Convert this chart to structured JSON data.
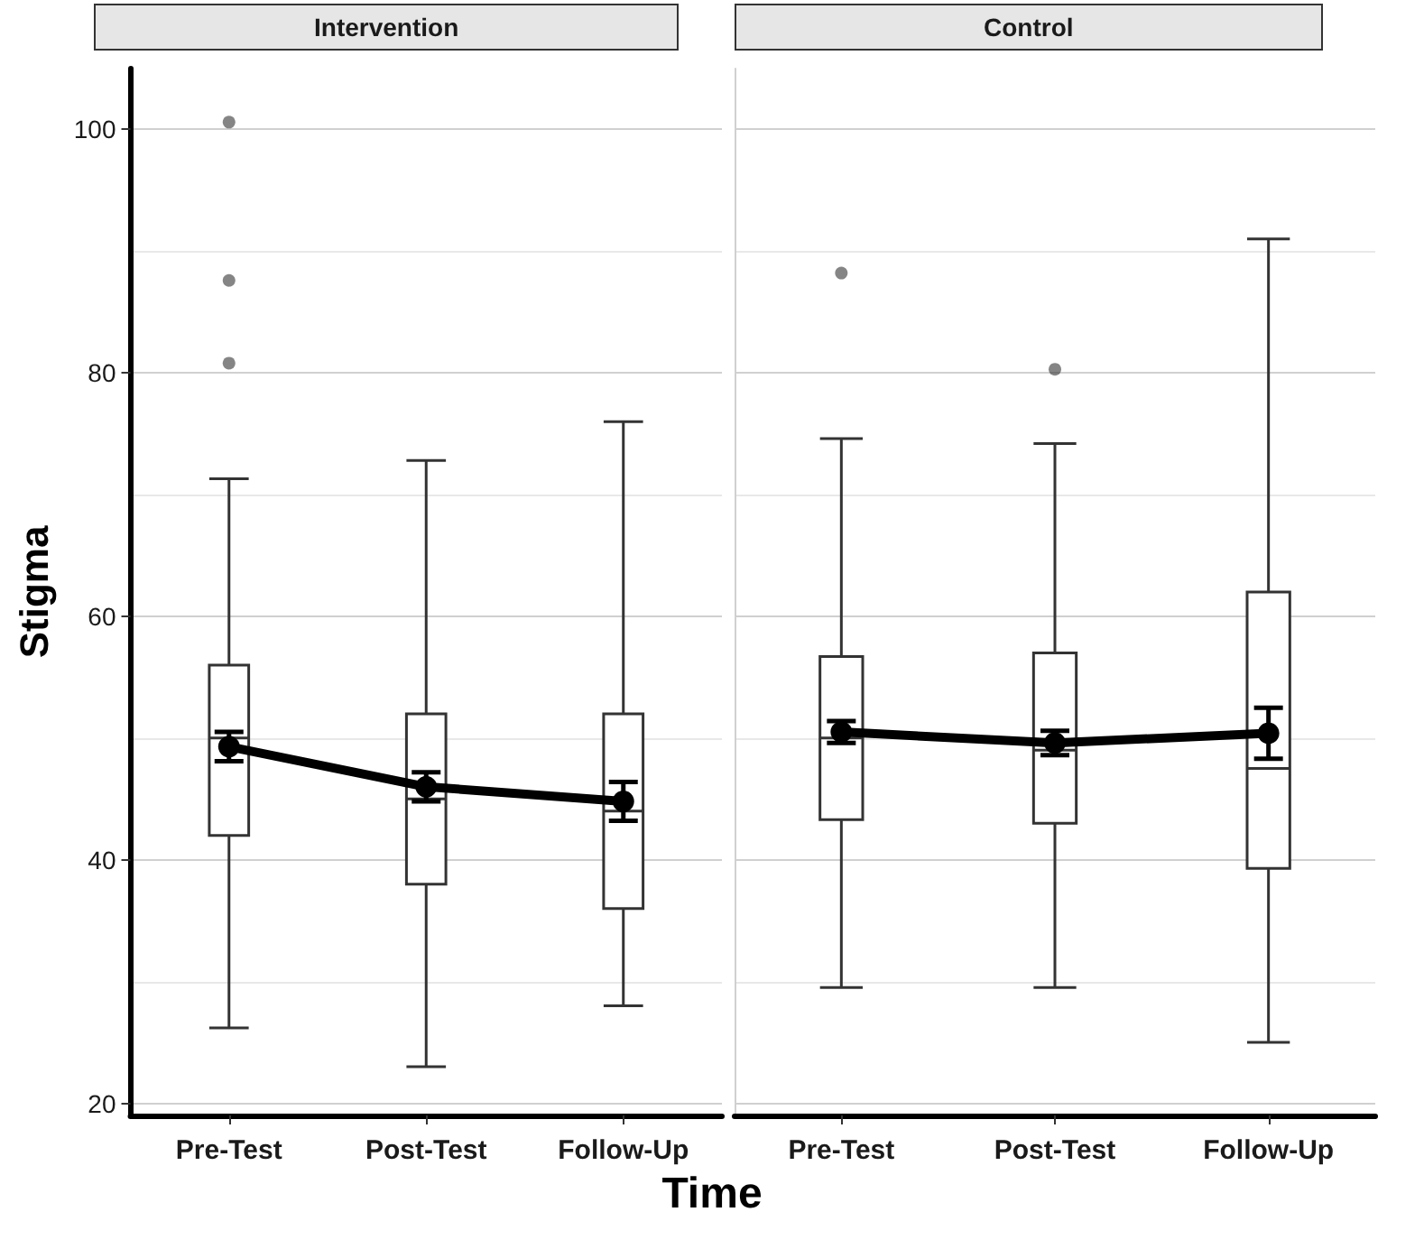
{
  "chart_data": [
    {
      "type": "box",
      "title": "Intervention",
      "ylabel": "Stigma",
      "xlabel": "Time",
      "categories": [
        "Pre-Test",
        "Post-Test",
        "Follow-Up"
      ],
      "ylim": [
        19,
        105
      ],
      "yticks": [
        20,
        40,
        60,
        80,
        100
      ],
      "grid": "y",
      "series": [
        {
          "color": "#333333",
          "boxes": [
            {
              "low": 26.2,
              "q1": 42,
              "median": 50,
              "q3": 56,
              "high": 71.3,
              "outliers": [
                80.8,
                87.6,
                100.6
              ]
            },
            {
              "low": 23,
              "q1": 38,
              "median": 45,
              "q3": 52,
              "high": 72.8
            },
            {
              "low": 28,
              "q1": 36,
              "median": 44,
              "q3": 52,
              "high": 76
            }
          ]
        },
        {
          "type": "line",
          "color": "#000000",
          "marker": "circle",
          "values": [
            49.3,
            46,
            44.8
          ],
          "errors": [
            1.2,
            1.2,
            1.6
          ]
        }
      ]
    },
    {
      "type": "box",
      "title": "Control",
      "categories": [
        "Pre-Test",
        "Post-Test",
        "Follow-Up"
      ],
      "ylim": [
        19,
        105
      ],
      "yticks": [
        20,
        40,
        60,
        80,
        100
      ],
      "grid": "y",
      "tick_labels": "x",
      "series": [
        {
          "color": "#333333",
          "boxes": [
            {
              "low": 29.5,
              "q1": 43.3,
              "median": 50,
              "q3": 56.7,
              "high": 74.6,
              "outliers": [
                88.2
              ]
            },
            {
              "low": 29.5,
              "q1": 43,
              "median": 49,
              "q3": 57,
              "high": 74.2,
              "outliers": [
                80.3
              ]
            },
            {
              "low": 25,
              "q1": 39.3,
              "median": 47.5,
              "q3": 62,
              "high": 91
            }
          ]
        },
        {
          "type": "line",
          "color": "#000000",
          "marker": "circle",
          "values": [
            50.5,
            49.6,
            50.4
          ],
          "errors": [
            0.9,
            1.0,
            2.1
          ]
        }
      ]
    }
  ]
}
